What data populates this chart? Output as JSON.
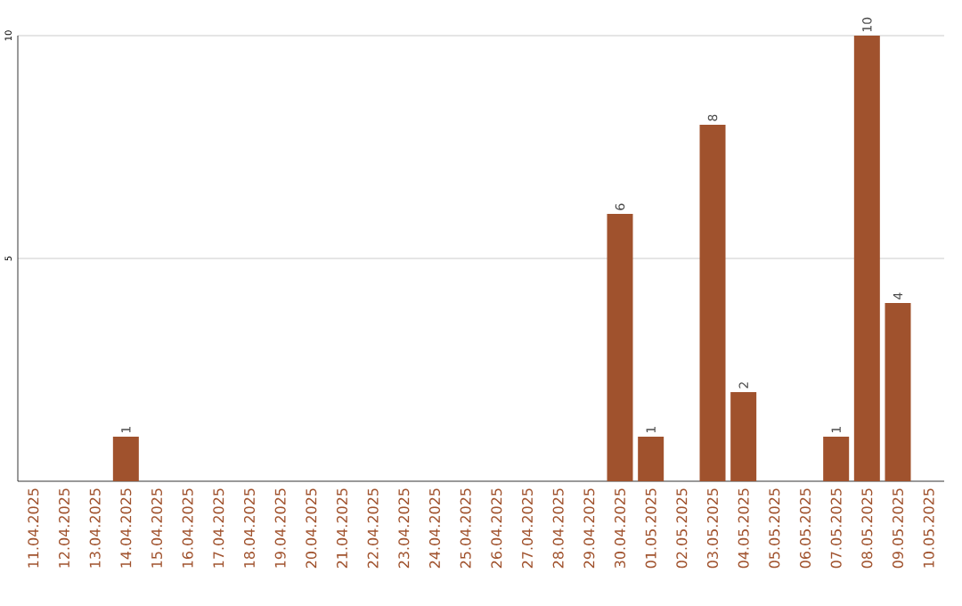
{
  "chart_data": {
    "type": "bar",
    "categories": [
      "11.04.2025",
      "12.04.2025",
      "13.04.2025",
      "14.04.2025",
      "15.04.2025",
      "16.04.2025",
      "17.04.2025",
      "18.04.2025",
      "19.04.2025",
      "20.04.2025",
      "21.04.2025",
      "22.04.2025",
      "23.04.2025",
      "24.04.2025",
      "25.04.2025",
      "26.04.2025",
      "27.04.2025",
      "28.04.2025",
      "29.04.2025",
      "30.04.2025",
      "01.05.2025",
      "02.05.2025",
      "03.05.2025",
      "04.05.2025",
      "05.05.2025",
      "06.05.2025",
      "07.05.2025",
      "08.05.2025",
      "09.05.2025",
      "10.05.2025"
    ],
    "values": [
      0,
      0,
      0,
      1,
      0,
      0,
      0,
      0,
      0,
      0,
      0,
      0,
      0,
      0,
      0,
      0,
      0,
      0,
      0,
      6,
      1,
      0,
      8,
      2,
      0,
      0,
      1,
      10,
      4,
      0
    ],
    "value_labels": [
      null,
      null,
      null,
      "1",
      null,
      null,
      null,
      null,
      null,
      null,
      null,
      null,
      null,
      null,
      null,
      null,
      null,
      null,
      null,
      "6",
      "1",
      null,
      "8",
      "2",
      null,
      null,
      "1",
      "10",
      "4",
      null
    ],
    "color": "#a0522d",
    "ylim": [
      0,
      10
    ],
    "yticks": [
      5,
      10
    ],
    "grid": "y"
  }
}
